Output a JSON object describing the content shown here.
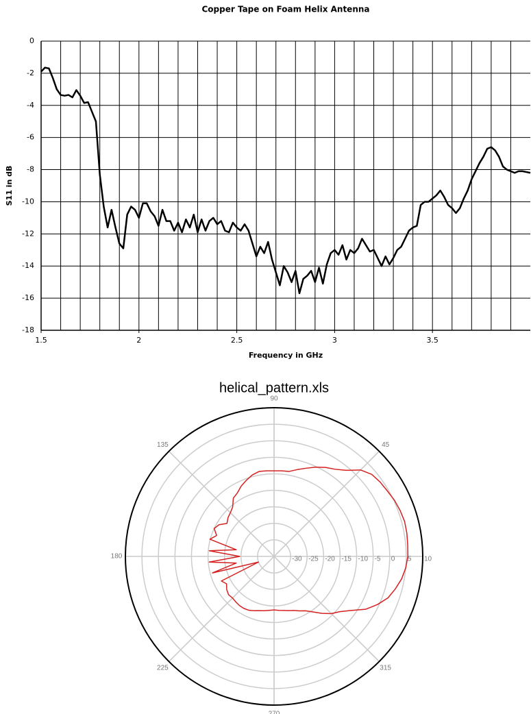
{
  "chart_data": [
    {
      "type": "line",
      "title": "Copper Tape on Foam Helix Antenna",
      "x_label": "Frequency in GHz",
      "y_label": "S11 in dB",
      "x": [
        1.5,
        1.52,
        1.54,
        1.56,
        1.58,
        1.6,
        1.62,
        1.64,
        1.66,
        1.68,
        1.7,
        1.72,
        1.74,
        1.76,
        1.78,
        1.8,
        1.82,
        1.84,
        1.86,
        1.88,
        1.9,
        1.92,
        1.94,
        1.96,
        1.98,
        2,
        2.02,
        2.04,
        2.06,
        2.08,
        2.1,
        2.12,
        2.14,
        2.16,
        2.18,
        2.2,
        2.22,
        2.24,
        2.26,
        2.28,
        2.3,
        2.32,
        2.34,
        2.36,
        2.38,
        2.4,
        2.42,
        2.44,
        2.46,
        2.48,
        2.5,
        2.52,
        2.54,
        2.56,
        2.58,
        2.6,
        2.62,
        2.64,
        2.66,
        2.68,
        2.7,
        2.72,
        2.74,
        2.76,
        2.78,
        2.8,
        2.82,
        2.84,
        2.86,
        2.88,
        2.9,
        2.92,
        2.94,
        2.96,
        2.98,
        3,
        3.02,
        3.04,
        3.06,
        3.08,
        3.1,
        3.12,
        3.14,
        3.16,
        3.18,
        3.2,
        3.22,
        3.24,
        3.26,
        3.28,
        3.3,
        3.32,
        3.34,
        3.36,
        3.38,
        3.4,
        3.42,
        3.44,
        3.46,
        3.48,
        3.5,
        3.52,
        3.54,
        3.56,
        3.58,
        3.6,
        3.62,
        3.64,
        3.66,
        3.68,
        3.7,
        3.72,
        3.74,
        3.76,
        3.78,
        3.8,
        3.82,
        3.84,
        3.86,
        3.88,
        3.9,
        3.92,
        3.94,
        3.96,
        3.98,
        4
      ],
      "values": [
        -1.9,
        -1.65,
        -1.7,
        -2.3,
        -3.0,
        -3.35,
        -3.4,
        -3.35,
        -3.5,
        -3.05,
        -3.4,
        -3.85,
        -3.8,
        -4.4,
        -5.0,
        -8.3,
        -10.3,
        -11.6,
        -10.5,
        -11.6,
        -12.6,
        -12.9,
        -10.8,
        -10.3,
        -10.5,
        -11.0,
        -10.1,
        -10.1,
        -10.6,
        -10.9,
        -11.5,
        -10.5,
        -11.2,
        -11.2,
        -11.8,
        -11.3,
        -11.9,
        -11.1,
        -11.6,
        -10.8,
        -11.9,
        -11.1,
        -11.8,
        -11.2,
        -11.0,
        -11.4,
        -11.2,
        -11.8,
        -11.9,
        -11.3,
        -11.6,
        -11.8,
        -11.4,
        -11.8,
        -12.6,
        -13.4,
        -12.8,
        -13.2,
        -12.5,
        -13.6,
        -14.4,
        -15.2,
        -14.0,
        -14.4,
        -15.0,
        -14.3,
        -15.7,
        -14.8,
        -14.6,
        -14.3,
        -15.0,
        -14.1,
        -15.1,
        -13.9,
        -13.2,
        -13.0,
        -13.3,
        -12.7,
        -13.6,
        -13.0,
        -13.2,
        -12.9,
        -12.3,
        -12.7,
        -13.1,
        -13.0,
        -13.5,
        -14.0,
        -13.4,
        -13.9,
        -13.5,
        -13.0,
        -12.8,
        -12.3,
        -11.8,
        -11.6,
        -11.5,
        -10.2,
        -10.0,
        -10.0,
        -9.8,
        -9.6,
        -9.3,
        -9.7,
        -10.2,
        -10.4,
        -10.7,
        -10.4,
        -9.8,
        -9.3,
        -8.6,
        -8.1,
        -7.6,
        -7.2,
        -6.7,
        -6.6,
        -6.8,
        -7.2,
        -7.8,
        -8.0,
        -8.1,
        -8.2,
        -8.1,
        -8.1,
        -8.15,
        -8.2
      ],
      "color": "#000000",
      "xlim": [
        1.5,
        4.0
      ],
      "xticks": [
        1.5,
        2,
        2.5,
        3,
        3.5
      ],
      "xgrid": [
        1.6,
        1.7,
        1.8,
        1.9,
        2,
        2.1,
        2.2,
        2.3,
        2.4,
        2.5,
        2.6,
        2.7,
        2.8,
        2.9,
        3,
        3.1,
        3.2,
        3.3,
        3.4,
        3.5,
        3.6,
        3.7,
        3.8,
        3.9
      ],
      "ylim": [
        -18,
        0
      ],
      "yticks": [
        -18,
        -16,
        -14,
        -12,
        -10,
        -8,
        -6,
        -4,
        -2,
        0
      ],
      "grid": true
    },
    {
      "type": "polar",
      "title": "helical_pattern.xls",
      "theta": [
        0,
        5,
        10,
        15,
        20,
        25,
        30,
        35,
        40,
        45,
        50,
        55,
        60,
        65,
        70,
        75,
        80,
        85,
        90,
        95,
        100,
        105,
        110,
        115,
        120,
        125,
        130,
        135,
        140,
        145,
        150,
        155,
        160,
        165,
        170,
        175,
        180,
        185,
        190,
        195,
        200,
        205,
        210,
        215,
        220,
        225,
        230,
        235,
        240,
        245,
        250,
        255,
        260,
        265,
        270,
        275,
        280,
        285,
        290,
        295,
        300,
        305,
        310,
        315,
        320,
        325,
        330,
        335,
        340,
        345,
        350,
        355
      ],
      "values": [
        5.5,
        5.6,
        5.8,
        5.9,
        5.6,
        5.2,
        4.6,
        4.2,
        3.6,
        2.0,
        -1.0,
        -2.8,
        -3.9,
        -5.2,
        -6.6,
        -7.8,
        -8.9,
        -9.0,
        -9.1,
        -9.0,
        -8.9,
        -9.5,
        -10.5,
        -11.5,
        -12.8,
        -13.5,
        -15.5,
        -16.3,
        -16.8,
        -17.6,
        -15.8,
        -15.0,
        -16.5,
        -14.9,
        -23.4,
        -15.3,
        -24.6,
        -15.3,
        -23.4,
        -15.7,
        -30.0,
        -17.4,
        -18.4,
        -17.5,
        -17.0,
        -17.2,
        -17.0,
        -16.8,
        -16.8,
        -17.0,
        -17.5,
        -18.0,
        -18.3,
        -18.6,
        -18.8,
        -18.6,
        -18.4,
        -18.0,
        -17.6,
        -16.8,
        -16.0,
        -14.5,
        -12.5,
        -10.5,
        -9.0,
        -6.5,
        -3.0,
        -0.5,
        1.7,
        3.0,
        4.2,
        5.0
      ],
      "color": "#d42020",
      "rlim": [
        -35,
        10
      ],
      "rticks": [
        -30,
        -25,
        -20,
        -15,
        -10,
        -5,
        0,
        5,
        10
      ],
      "thetaticks": [
        45,
        90,
        135,
        180,
        225,
        270,
        315
      ]
    }
  ]
}
